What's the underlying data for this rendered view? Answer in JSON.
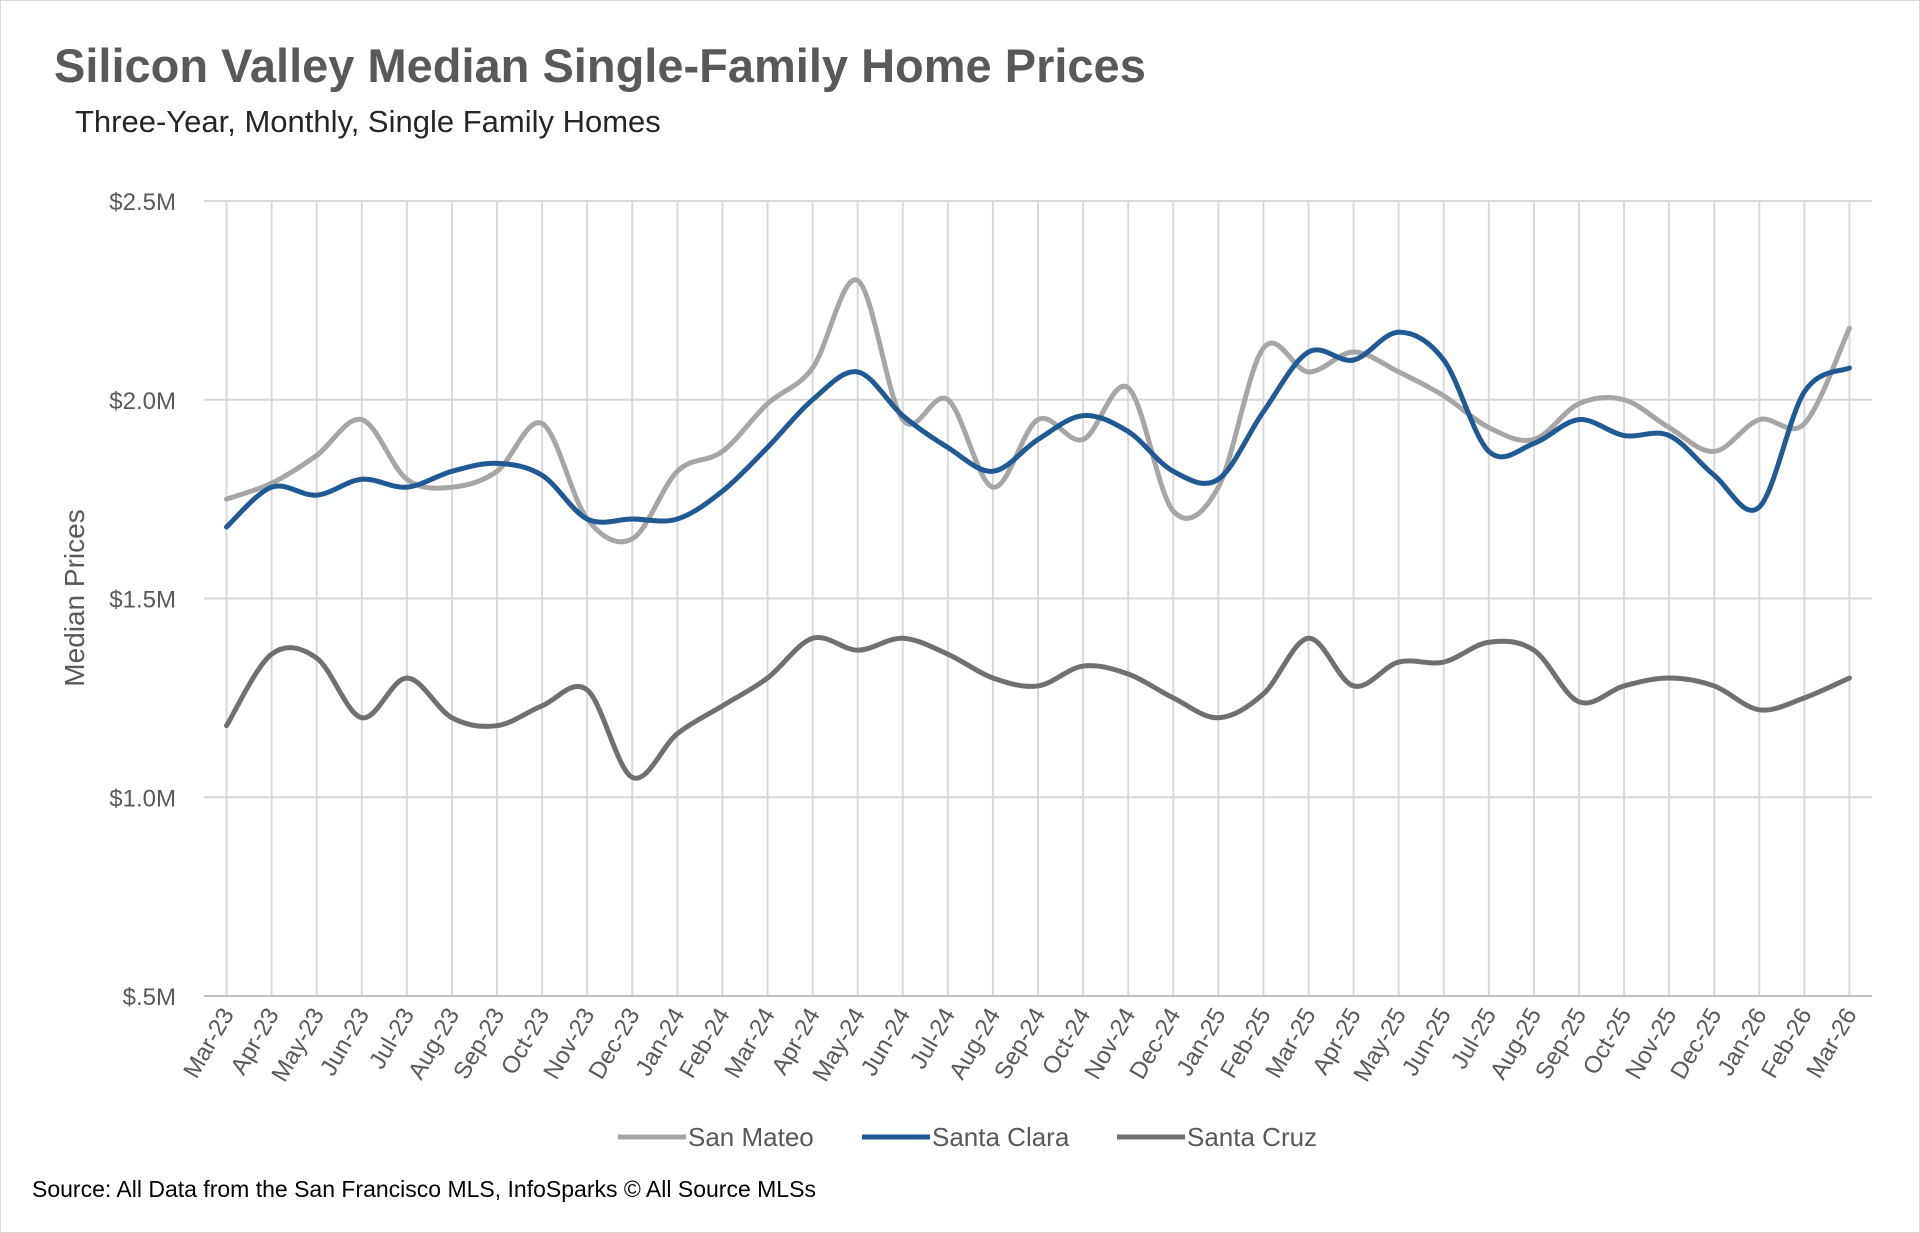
{
  "chart_data": {
    "type": "line",
    "title": "Silicon Valley Median Single-Family Home Prices",
    "subtitle": "Three-Year, Monthly, Single Family Homes",
    "ylabel": "Median Prices",
    "xlabel": "",
    "ylim": [
      0.5,
      2.5
    ],
    "yticks": [
      0.5,
      1.0,
      1.5,
      2.0,
      2.5
    ],
    "ytick_labels": [
      "$.5M",
      "$1.0M",
      "$1.5M",
      "$2.0M",
      "$2.5M"
    ],
    "grid": true,
    "legend_position": "bottom",
    "categories": [
      "Mar-23",
      "Apr-23",
      "May-23",
      "Jun-23",
      "Jul-23",
      "Aug-23",
      "Sep-23",
      "Oct-23",
      "Nov-23",
      "Dec-23",
      "Jan-24",
      "Feb-24",
      "Mar-24",
      "Apr-24",
      "May-24",
      "Jun-24",
      "Jul-24",
      "Aug-24",
      "Sep-24",
      "Oct-24",
      "Nov-24",
      "Dec-24",
      "Jan-25",
      "Feb-25",
      "Mar-25",
      "Apr-25",
      "May-25",
      "Jun-25",
      "Jul-25",
      "Aug-25",
      "Sep-25",
      "Oct-25",
      "Nov-25",
      "Dec-25",
      "Jan-26",
      "Feb-26",
      "Mar-26"
    ],
    "series": [
      {
        "name": "San Mateo",
        "color": "#a6a6a6",
        "values": [
          1.75,
          1.79,
          1.86,
          1.95,
          1.8,
          1.78,
          1.82,
          1.94,
          1.7,
          1.65,
          1.82,
          1.87,
          1.99,
          2.08,
          2.3,
          1.95,
          2.0,
          1.78,
          1.95,
          1.9,
          2.03,
          1.72,
          1.78,
          2.13,
          2.07,
          2.12,
          2.07,
          2.01,
          1.93,
          1.9,
          1.99,
          2.0,
          1.93,
          1.87,
          1.95,
          1.94,
          2.18
        ]
      },
      {
        "name": "Santa Clara",
        "color": "#1f5a94",
        "values": [
          1.68,
          1.78,
          1.76,
          1.8,
          1.78,
          1.82,
          1.84,
          1.81,
          1.7,
          1.7,
          1.7,
          1.77,
          1.88,
          2.0,
          2.07,
          1.96,
          1.88,
          1.82,
          1.9,
          1.96,
          1.92,
          1.82,
          1.8,
          1.97,
          2.12,
          2.1,
          2.17,
          2.1,
          1.87,
          1.89,
          1.95,
          1.91,
          1.91,
          1.81,
          1.73,
          2.02,
          2.08
        ]
      },
      {
        "name": "Santa Cruz",
        "color": "#707070",
        "values": [
          1.18,
          1.36,
          1.35,
          1.2,
          1.3,
          1.2,
          1.18,
          1.23,
          1.27,
          1.05,
          1.16,
          1.23,
          1.3,
          1.4,
          1.37,
          1.4,
          1.36,
          1.3,
          1.28,
          1.33,
          1.31,
          1.25,
          1.2,
          1.26,
          1.4,
          1.28,
          1.34,
          1.34,
          1.39,
          1.37,
          1.24,
          1.28,
          1.3,
          1.28,
          1.22,
          1.25,
          1.3
        ]
      }
    ],
    "source": "Source: All Data from the San Francisco MLS, InfoSparks © All Source MLSs"
  }
}
